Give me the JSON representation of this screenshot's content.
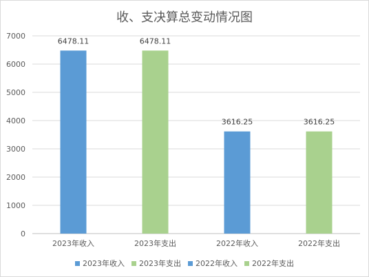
{
  "chart_data": {
    "type": "bar",
    "title": "收、支决算总变动情况图",
    "categories": [
      "2023年收入",
      "2023年支出",
      "2022年收入",
      "2022年支出"
    ],
    "values": [
      6478.11,
      6478.11,
      3616.25,
      3616.25
    ],
    "data_labels": [
      "6478.11",
      "6478.11",
      "3616.25",
      "3616.25"
    ],
    "bar_colors": [
      "#5b9bd5",
      "#a9d18e",
      "#5b9bd5",
      "#a9d18e"
    ],
    "ylim": [
      0,
      7000
    ],
    "yticks": [
      "0",
      "1000",
      "2000",
      "3000",
      "4000",
      "5000",
      "6000",
      "7000"
    ],
    "grid": true,
    "legend_position": "bottom",
    "legend": [
      {
        "label": "2023年收入",
        "color": "#5b9bd5"
      },
      {
        "label": "2023年支出",
        "color": "#a9d18e"
      },
      {
        "label": "2022年收入",
        "color": "#5b9bd5"
      },
      {
        "label": "2022年支出",
        "color": "#a9d18e"
      }
    ]
  }
}
